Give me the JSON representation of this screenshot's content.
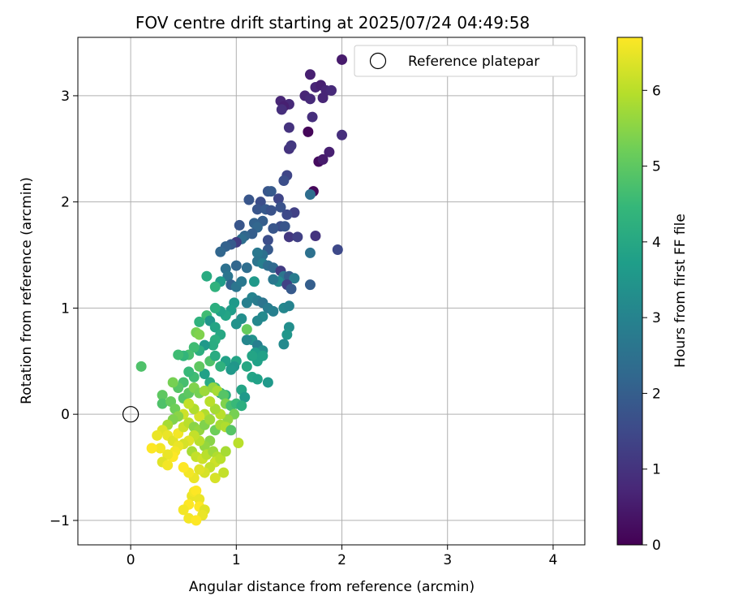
{
  "chart_data": {
    "type": "scatter",
    "title": "FOV centre drift starting at 2025/07/24 04:49:58",
    "xlabel": "Angular distance from reference (arcmin)",
    "ylabel": "Rotation from reference (arcmin)",
    "xlim": [
      -0.5,
      4.3
    ],
    "ylim": [
      -1.23,
      3.55
    ],
    "xticks": [
      "0",
      "1",
      "2",
      "3",
      "4"
    ],
    "yticks": [
      "−1",
      "0",
      "1",
      "2",
      "3"
    ],
    "grid": true,
    "legend": {
      "placement": "top-right",
      "entries": [
        "Reference platepar"
      ]
    },
    "reference_point": {
      "x": 0,
      "y": 0,
      "label": "Reference platepar"
    },
    "colorbar": {
      "label": "Hours from first FF file",
      "colormap": "viridis",
      "range": [
        0,
        6.7
      ],
      "ticks": [
        "0",
        "1",
        "2",
        "3",
        "4",
        "5",
        "6"
      ]
    },
    "colormap_stops": [
      "#440154",
      "#482878",
      "#3e4989",
      "#31688e",
      "#26828e",
      "#1f9e89",
      "#35b779",
      "#6ece58",
      "#b5de2b",
      "#fde725"
    ],
    "series": [
      {
        "points": [
          [
            2.0,
            3.34,
            0.5
          ],
          [
            1.7,
            3.2,
            0.6
          ],
          [
            1.75,
            3.08,
            0.7
          ],
          [
            1.8,
            3.1,
            0.6
          ],
          [
            1.85,
            3.05,
            0.7
          ],
          [
            1.9,
            3.05,
            0.8
          ],
          [
            1.65,
            3.0,
            0.7
          ],
          [
            1.5,
            2.92,
            0.8
          ],
          [
            1.42,
            2.95,
            0.7
          ],
          [
            1.45,
            2.9,
            0.6
          ],
          [
            1.43,
            2.87,
            0.9
          ],
          [
            1.7,
            2.97,
            0.8
          ],
          [
            1.72,
            2.8,
            0.9
          ],
          [
            1.82,
            2.98,
            0.7
          ],
          [
            1.5,
            2.7,
            1.0
          ],
          [
            1.68,
            2.66,
            0.1
          ],
          [
            2.0,
            2.63,
            0.9
          ],
          [
            1.5,
            2.5,
            1.0
          ],
          [
            1.52,
            2.53,
            1.1
          ],
          [
            1.88,
            2.47,
            0.6
          ],
          [
            1.78,
            2.38,
            0.2
          ],
          [
            1.82,
            2.4,
            0.5
          ],
          [
            1.48,
            2.25,
            1.4
          ],
          [
            1.45,
            2.2,
            1.6
          ],
          [
            1.3,
            2.1,
            1.8
          ],
          [
            1.33,
            2.1,
            1.9
          ],
          [
            1.73,
            2.1,
            0.1
          ],
          [
            1.7,
            2.07,
            2.4
          ],
          [
            1.12,
            2.02,
            1.8
          ],
          [
            1.23,
            2.0,
            1.6
          ],
          [
            1.4,
            2.03,
            1.4
          ],
          [
            1.42,
            1.95,
            1.7
          ],
          [
            1.2,
            1.93,
            1.8
          ],
          [
            1.28,
            1.93,
            1.9
          ],
          [
            1.33,
            1.92,
            1.7
          ],
          [
            1.25,
            1.82,
            2.0
          ],
          [
            1.17,
            1.8,
            2.1
          ],
          [
            1.55,
            1.9,
            1.3
          ],
          [
            1.48,
            1.88,
            1.5
          ],
          [
            1.42,
            1.77,
            1.6
          ],
          [
            1.46,
            1.77,
            1.8
          ],
          [
            1.35,
            1.75,
            1.8
          ],
          [
            1.03,
            1.78,
            1.8
          ],
          [
            1.2,
            1.76,
            2.2
          ],
          [
            1.15,
            1.7,
            2.0
          ],
          [
            1.08,
            1.68,
            2.2
          ],
          [
            1.05,
            1.65,
            2.4
          ],
          [
            1.0,
            1.62,
            1.2
          ],
          [
            0.95,
            1.6,
            1.9
          ],
          [
            0.9,
            1.58,
            2.1
          ],
          [
            0.85,
            1.53,
            2.2
          ],
          [
            1.3,
            1.64,
            1.6
          ],
          [
            1.5,
            1.67,
            1.1
          ],
          [
            1.58,
            1.67,
            1.3
          ],
          [
            1.75,
            1.68,
            1.0
          ],
          [
            1.96,
            1.55,
            1.5
          ],
          [
            1.7,
            1.52,
            2.5
          ],
          [
            1.3,
            1.55,
            1.9
          ],
          [
            1.25,
            1.5,
            2.5
          ],
          [
            1.2,
            1.52,
            2.7
          ],
          [
            1.2,
            1.44,
            2.6
          ],
          [
            1.25,
            1.42,
            2.9
          ],
          [
            1.3,
            1.4,
            2.4
          ],
          [
            1.35,
            1.38,
            2.3
          ],
          [
            1.42,
            1.35,
            1.2
          ],
          [
            1.45,
            1.3,
            2.6
          ],
          [
            1.5,
            1.3,
            2.0
          ],
          [
            1.55,
            1.28,
            2.8
          ],
          [
            1.4,
            1.25,
            3.2
          ],
          [
            1.35,
            1.27,
            2.7
          ],
          [
            1.48,
            1.22,
            1.3
          ],
          [
            1.52,
            1.18,
            1.9
          ],
          [
            1.7,
            1.22,
            2.0
          ],
          [
            1.1,
            1.38,
            2.4
          ],
          [
            1.0,
            1.4,
            2.2
          ],
          [
            0.9,
            1.37,
            2.5
          ],
          [
            0.92,
            1.3,
            2.6
          ],
          [
            0.95,
            1.22,
            2.1
          ],
          [
            1.0,
            1.2,
            2.6
          ],
          [
            1.05,
            1.25,
            2.7
          ],
          [
            1.17,
            1.25,
            3.6
          ],
          [
            0.85,
            1.25,
            3.7
          ],
          [
            0.8,
            1.2,
            4.3
          ],
          [
            0.72,
            1.3,
            4.1
          ],
          [
            1.15,
            1.1,
            3.0
          ],
          [
            1.1,
            1.05,
            2.9
          ],
          [
            1.2,
            1.07,
            2.8
          ],
          [
            1.25,
            1.05,
            2.6
          ],
          [
            1.3,
            1.0,
            2.8
          ],
          [
            1.35,
            0.97,
            2.9
          ],
          [
            1.45,
            1.0,
            3.1
          ],
          [
            1.5,
            1.02,
            3.0
          ],
          [
            1.25,
            0.92,
            3.2
          ],
          [
            1.2,
            0.88,
            3.1
          ],
          [
            1.05,
            0.9,
            3.3
          ],
          [
            0.98,
            1.05,
            3.6
          ],
          [
            0.95,
            0.98,
            3.7
          ],
          [
            0.9,
            0.93,
            3.9
          ],
          [
            0.85,
            0.97,
            3.8
          ],
          [
            0.8,
            1.0,
            4.2
          ],
          [
            0.72,
            0.93,
            4.6
          ],
          [
            0.65,
            0.87,
            4.3
          ],
          [
            0.75,
            0.88,
            3.5
          ],
          [
            0.8,
            0.82,
            3.9
          ],
          [
            0.85,
            0.75,
            4.0
          ],
          [
            1.0,
            0.85,
            3.4
          ],
          [
            1.1,
            0.8,
            5.1
          ],
          [
            1.15,
            0.7,
            3.4
          ],
          [
            1.2,
            0.65,
            2.9
          ],
          [
            1.1,
            0.7,
            3.1
          ],
          [
            1.5,
            0.82,
            3.3
          ],
          [
            1.48,
            0.75,
            3.5
          ],
          [
            1.45,
            0.66,
            3.2
          ],
          [
            1.25,
            0.6,
            3.3
          ],
          [
            1.18,
            0.58,
            3.7
          ],
          [
            1.2,
            0.5,
            3.8
          ],
          [
            1.25,
            0.55,
            3.8
          ],
          [
            1.15,
            0.55,
            3.9
          ],
          [
            1.1,
            0.45,
            4.0
          ],
          [
            0.8,
            0.7,
            4.2
          ],
          [
            0.78,
            0.65,
            4.1
          ],
          [
            0.7,
            0.65,
            3.6
          ],
          [
            0.65,
            0.6,
            4.2
          ],
          [
            0.62,
            0.77,
            5.3
          ],
          [
            0.65,
            0.75,
            5.4
          ],
          [
            0.6,
            0.63,
            4.6
          ],
          [
            0.55,
            0.56,
            4.7
          ],
          [
            0.5,
            0.55,
            4.4
          ],
          [
            0.45,
            0.56,
            4.6
          ],
          [
            0.75,
            0.5,
            4.8
          ],
          [
            0.8,
            0.55,
            4.1
          ],
          [
            0.9,
            0.5,
            3.8
          ],
          [
            0.85,
            0.45,
            4.3
          ],
          [
            1.0,
            0.5,
            3.9
          ],
          [
            0.98,
            0.45,
            3.5
          ],
          [
            0.95,
            0.42,
            3.6
          ],
          [
            1.15,
            0.35,
            3.9
          ],
          [
            1.2,
            0.33,
            3.8
          ],
          [
            1.3,
            0.3,
            3.6
          ],
          [
            1.05,
            0.23,
            3.9
          ],
          [
            1.08,
            0.16,
            3.6
          ],
          [
            0.9,
            0.18,
            4.2
          ],
          [
            0.85,
            0.2,
            4.1
          ],
          [
            0.8,
            0.25,
            4.5
          ],
          [
            0.75,
            0.3,
            4.1
          ],
          [
            0.7,
            0.38,
            3.8
          ],
          [
            0.65,
            0.45,
            5.0
          ],
          [
            0.6,
            0.35,
            4.6
          ],
          [
            0.55,
            0.4,
            4.5
          ],
          [
            0.5,
            0.3,
            4.7
          ],
          [
            0.45,
            0.25,
            4.9
          ],
          [
            0.4,
            0.3,
            5.3
          ],
          [
            0.1,
            0.45,
            4.8
          ],
          [
            0.3,
            0.18,
            5.0
          ],
          [
            0.3,
            0.1,
            4.8
          ],
          [
            0.38,
            0.12,
            5.1
          ],
          [
            0.42,
            0.05,
            5.2
          ],
          [
            0.5,
            0.15,
            4.9
          ],
          [
            0.55,
            0.2,
            5.0
          ],
          [
            0.6,
            0.25,
            5.4
          ],
          [
            0.65,
            0.2,
            5.3
          ],
          [
            0.7,
            0.22,
            5.7
          ],
          [
            0.78,
            0.25,
            5.6
          ],
          [
            0.82,
            0.22,
            5.8
          ],
          [
            0.88,
            0.18,
            4.9
          ],
          [
            0.9,
            0.1,
            5.4
          ],
          [
            0.95,
            0.08,
            4.7
          ],
          [
            1.0,
            0.1,
            4.5
          ],
          [
            1.05,
            0.08,
            4.2
          ],
          [
            0.98,
            0.0,
            5.3
          ],
          [
            0.92,
            -0.05,
            5.6
          ],
          [
            0.85,
            0.0,
            6.0
          ],
          [
            0.8,
            0.05,
            5.8
          ],
          [
            0.75,
            0.12,
            6.0
          ],
          [
            0.7,
            0.0,
            5.9
          ],
          [
            0.65,
            -0.02,
            6.3
          ],
          [
            0.6,
            0.05,
            5.9
          ],
          [
            0.55,
            0.1,
            6.1
          ],
          [
            0.5,
            0.0,
            6.2
          ],
          [
            0.45,
            -0.02,
            5.5
          ],
          [
            0.4,
            -0.05,
            5.4
          ],
          [
            0.35,
            -0.1,
            5.8
          ],
          [
            0.3,
            -0.15,
            6.4
          ],
          [
            0.35,
            -0.2,
            6.5
          ],
          [
            0.4,
            -0.25,
            6.4
          ],
          [
            0.45,
            -0.18,
            6.6
          ],
          [
            0.5,
            -0.12,
            6.2
          ],
          [
            0.55,
            -0.08,
            6.0
          ],
          [
            0.6,
            -0.12,
            5.5
          ],
          [
            0.65,
            -0.15,
            5.6
          ],
          [
            0.7,
            -0.1,
            5.4
          ],
          [
            0.75,
            -0.05,
            5.7
          ],
          [
            0.8,
            -0.15,
            5.2
          ],
          [
            0.85,
            -0.1,
            5.8
          ],
          [
            0.9,
            -0.12,
            5.9
          ],
          [
            0.95,
            -0.15,
            4.9
          ],
          [
            1.02,
            -0.27,
            6.0
          ],
          [
            0.75,
            -0.25,
            5.5
          ],
          [
            0.7,
            -0.3,
            5.6
          ],
          [
            0.65,
            -0.25,
            6.0
          ],
          [
            0.6,
            -0.2,
            6.1
          ],
          [
            0.55,
            -0.25,
            6.4
          ],
          [
            0.5,
            -0.28,
            6.3
          ],
          [
            0.45,
            -0.3,
            6.5
          ],
          [
            0.42,
            -0.35,
            6.6
          ],
          [
            0.4,
            -0.4,
            6.7
          ],
          [
            0.35,
            -0.38,
            6.5
          ],
          [
            0.3,
            -0.45,
            6.4
          ],
          [
            0.28,
            -0.32,
            6.6
          ],
          [
            0.25,
            -0.2,
            6.5
          ],
          [
            0.2,
            -0.32,
            6.7
          ],
          [
            0.58,
            -0.35,
            5.8
          ],
          [
            0.62,
            -0.4,
            6.1
          ],
          [
            0.68,
            -0.42,
            6.2
          ],
          [
            0.72,
            -0.38,
            6.0
          ],
          [
            0.78,
            -0.35,
            5.7
          ],
          [
            0.82,
            -0.4,
            5.9
          ],
          [
            0.8,
            -0.45,
            6.2
          ],
          [
            0.75,
            -0.5,
            6.1
          ],
          [
            0.7,
            -0.55,
            6.3
          ],
          [
            0.65,
            -0.52,
            6.4
          ],
          [
            0.6,
            -0.6,
            6.5
          ],
          [
            0.55,
            -0.55,
            6.6
          ],
          [
            0.5,
            -0.5,
            6.7
          ],
          [
            0.35,
            -0.48,
            6.6
          ],
          [
            0.58,
            -0.77,
            6.5
          ],
          [
            0.6,
            -0.73,
            6.6
          ],
          [
            0.62,
            -0.72,
            6.7
          ],
          [
            0.65,
            -0.8,
            6.5
          ],
          [
            0.55,
            -0.85,
            6.7
          ],
          [
            0.5,
            -0.9,
            6.6
          ],
          [
            0.65,
            -0.87,
            6.8
          ],
          [
            0.7,
            -0.9,
            6.4
          ],
          [
            0.68,
            -0.95,
            6.5
          ],
          [
            0.55,
            -0.98,
            6.6
          ],
          [
            0.62,
            -1.0,
            6.7
          ],
          [
            0.8,
            -0.6,
            6.3
          ],
          [
            0.85,
            -0.42,
            6.0
          ],
          [
            0.9,
            -0.35,
            5.8
          ],
          [
            0.88,
            -0.55,
            6.1
          ]
        ]
      }
    ]
  }
}
